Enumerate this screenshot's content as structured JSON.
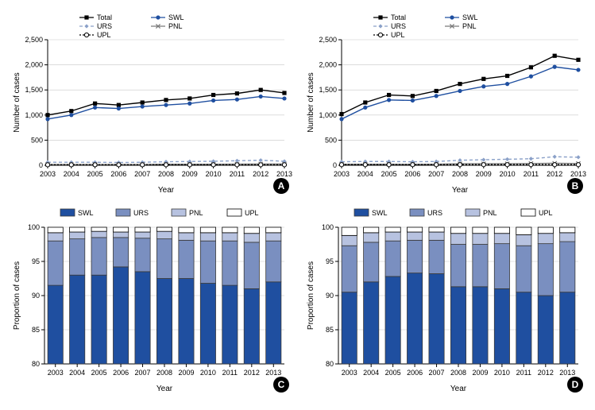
{
  "years": [
    "2003",
    "2004",
    "2005",
    "2006",
    "2007",
    "2008",
    "2009",
    "2010",
    "2011",
    "2012",
    "2013"
  ],
  "panelA": {
    "type": "line",
    "title_badge": "A",
    "ylabel": "Number of cases",
    "xlabel": "Year",
    "ylim": [
      0,
      2500
    ],
    "ytick_step": 500,
    "grid_color": "#c8c8c8",
    "background_color": "#ffffff",
    "series": [
      {
        "name": "Total",
        "label": "Total",
        "color": "#000000",
        "marker": "square",
        "dash": "none",
        "values": [
          1000,
          1080,
          1230,
          1200,
          1250,
          1300,
          1330,
          1400,
          1430,
          1500,
          1440
        ]
      },
      {
        "name": "SWL",
        "label": "SWL",
        "color": "#1f4fa0",
        "marker": "circle",
        "dash": "none",
        "values": [
          920,
          1000,
          1150,
          1130,
          1170,
          1200,
          1230,
          1290,
          1310,
          1370,
          1330
        ]
      },
      {
        "name": "URS",
        "label": "URS",
        "color": "#8aa0c8",
        "marker": "diamond",
        "dash": "4,3",
        "values": [
          60,
          60,
          60,
          55,
          60,
          70,
          75,
          80,
          90,
          100,
          80
        ]
      },
      {
        "name": "PNL",
        "label": "PNL",
        "color": "#7a7a7a",
        "marker": "x",
        "dash": "none",
        "values": [
          15,
          15,
          15,
          15,
          15,
          20,
          20,
          20,
          22,
          25,
          25
        ]
      },
      {
        "name": "UPL",
        "label": "UPL",
        "color": "#000000",
        "marker": "ocircle",
        "dash": "2,2",
        "values": [
          10,
          10,
          10,
          10,
          10,
          10,
          10,
          10,
          10,
          10,
          10
        ]
      }
    ],
    "legend_order": [
      "Total",
      "URS",
      "UPL",
      "SWL",
      "PNL"
    ],
    "label_fontsize": 10
  },
  "panelB": {
    "type": "line",
    "title_badge": "B",
    "ylabel": "Number of cases",
    "xlabel": "Year",
    "ylim": [
      0,
      2500
    ],
    "ytick_step": 500,
    "grid_color": "#c8c8c8",
    "background_color": "#ffffff",
    "series": [
      {
        "name": "Total",
        "label": "Total",
        "color": "#000000",
        "marker": "square",
        "dash": "none",
        "values": [
          1020,
          1250,
          1400,
          1380,
          1480,
          1620,
          1720,
          1780,
          1950,
          2180,
          2100
        ]
      },
      {
        "name": "SWL",
        "label": "SWL",
        "color": "#1f4fa0",
        "marker": "circle",
        "dash": "none",
        "values": [
          920,
          1150,
          1300,
          1290,
          1380,
          1480,
          1570,
          1620,
          1770,
          1960,
          1900
        ]
      },
      {
        "name": "URS",
        "label": "URS",
        "color": "#8aa0c8",
        "marker": "diamond",
        "dash": "4,3",
        "values": [
          70,
          75,
          75,
          70,
          75,
          100,
          110,
          120,
          130,
          170,
          160
        ]
      },
      {
        "name": "PNL",
        "label": "PNL",
        "color": "#7a7a7a",
        "marker": "x",
        "dash": "none",
        "values": [
          20,
          20,
          20,
          18,
          20,
          30,
          30,
          30,
          35,
          40,
          35
        ]
      },
      {
        "name": "UPL",
        "label": "UPL",
        "color": "#000000",
        "marker": "ocircle",
        "dash": "2,2",
        "values": [
          12,
          12,
          12,
          12,
          12,
          12,
          12,
          12,
          12,
          12,
          12
        ]
      }
    ],
    "legend_order": [
      "Total",
      "URS",
      "UPL",
      "SWL",
      "PNL"
    ],
    "label_fontsize": 10
  },
  "panelC": {
    "type": "stacked_bar",
    "title_badge": "C",
    "ylabel": "Proportion of cases",
    "xlabel": "Year",
    "ylim": [
      80,
      100
    ],
    "ytick_step": 5,
    "grid_color": "#c8c8c8",
    "background_color": "#ffffff",
    "bar_width": 0.7,
    "legend_order": [
      "SWL",
      "URS",
      "PNL",
      "UPL"
    ],
    "stack_order": [
      "SWL",
      "URS",
      "PNL",
      "UPL"
    ],
    "colors": {
      "SWL": "#1f4fa0",
      "URS": "#7a8fc0",
      "PNL": "#b7c2e0",
      "UPL": "#ffffff"
    },
    "borders": {
      "UPL": "#000000"
    },
    "series": {
      "SWL": [
        91.5,
        93.0,
        93.0,
        94.2,
        93.5,
        92.5,
        92.5,
        91.8,
        91.5,
        91.0,
        92.0
      ],
      "URS": [
        6.5,
        5.3,
        5.5,
        4.3,
        4.9,
        5.8,
        5.6,
        6.2,
        6.5,
        6.8,
        6.0
      ],
      "PNL": [
        1.2,
        1.0,
        0.9,
        0.8,
        0.9,
        1.1,
        1.1,
        1.2,
        1.2,
        1.3,
        1.2
      ],
      "UPL": [
        0.8,
        0.7,
        0.6,
        0.7,
        0.7,
        0.6,
        0.8,
        0.8,
        0.8,
        0.9,
        0.8
      ]
    },
    "label_fontsize": 10
  },
  "panelD": {
    "type": "stacked_bar",
    "title_badge": "D",
    "ylabel": "Proportion of cases",
    "xlabel": "Year",
    "ylim": [
      80,
      100
    ],
    "ytick_step": 5,
    "grid_color": "#c8c8c8",
    "background_color": "#ffffff",
    "bar_width": 0.7,
    "legend_order": [
      "SWL",
      "URS",
      "PNL",
      "UPL"
    ],
    "stack_order": [
      "SWL",
      "URS",
      "PNL",
      "UPL"
    ],
    "colors": {
      "SWL": "#1f4fa0",
      "URS": "#7a8fc0",
      "PNL": "#b7c2e0",
      "UPL": "#ffffff"
    },
    "borders": {
      "UPL": "#000000"
    },
    "series": {
      "SWL": [
        90.5,
        92.0,
        92.8,
        93.3,
        93.2,
        91.3,
        91.3,
        91.0,
        90.5,
        90.0,
        90.5
      ],
      "URS": [
        6.8,
        5.8,
        5.2,
        4.8,
        4.9,
        6.2,
        6.2,
        6.6,
        6.8,
        7.6,
        7.4
      ],
      "PNL": [
        1.5,
        1.4,
        1.3,
        1.2,
        1.2,
        1.6,
        1.6,
        1.5,
        1.6,
        1.5,
        1.3
      ],
      "UPL": [
        1.2,
        0.8,
        0.7,
        0.7,
        0.7,
        0.9,
        0.9,
        0.9,
        1.1,
        0.9,
        0.8
      ]
    },
    "label_fontsize": 10
  }
}
